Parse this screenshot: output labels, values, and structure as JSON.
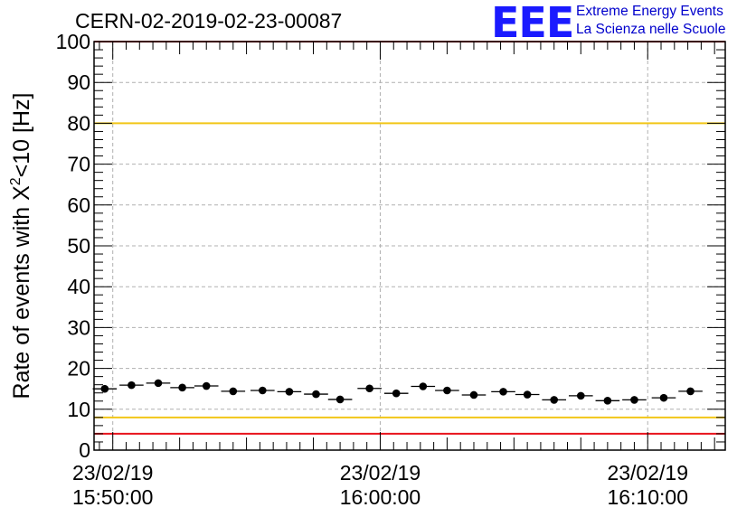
{
  "header": {
    "title": "CERN-02-2019-02-23-00087",
    "logo_text": "EEE",
    "logo_line1": "Extreme Energy Events",
    "logo_line2": "La Scienza nelle Scuole"
  },
  "colors": {
    "logo": "#1a1aff",
    "red_line": "#e8121b",
    "yellow_line": "#f2c618",
    "grid": "#b0b0b0",
    "marker": "#000000"
  },
  "chart_data": {
    "type": "scatter",
    "ylabel_main": "Rate of events with X",
    "ylabel_sup": "2",
    "ylabel_tail": "<10 [Hz]",
    "ylim": [
      0,
      100
    ],
    "y_ticks": [
      "0",
      "10",
      "20",
      "30",
      "40",
      "50",
      "60",
      "70",
      "80",
      "90",
      "100"
    ],
    "x_ticks": [
      {
        "minutes": 0,
        "date": "23/02/19",
        "time": "15:50:00"
      },
      {
        "minutes": 10,
        "date": "23/02/19",
        "time": "16:00:00"
      },
      {
        "minutes": 20,
        "date": "23/02/19",
        "time": "16:10:00"
      }
    ],
    "xlim_minutes": [
      -0.7,
      22.9
    ],
    "bin_width_minutes": 0.9,
    "grid": true,
    "reference_lines": [
      {
        "value": 100,
        "color": "red"
      },
      {
        "value": 80,
        "color": "yellow"
      },
      {
        "value": 8,
        "color": "yellow"
      },
      {
        "value": 4,
        "color": "red"
      }
    ],
    "x_minutes": [
      -0.3,
      0.7,
      1.7,
      2.6,
      3.5,
      4.5,
      5.6,
      6.6,
      7.6,
      8.5,
      9.6,
      10.6,
      11.6,
      12.5,
      13.5,
      14.6,
      15.5,
      16.5,
      17.5,
      18.5,
      19.5,
      20.6,
      21.6
    ],
    "values": [
      15.0,
      15.9,
      16.4,
      15.3,
      15.7,
      14.4,
      14.6,
      14.3,
      13.7,
      12.4,
      15.1,
      13.9,
      15.6,
      14.6,
      13.5,
      14.3,
      13.6,
      12.3,
      13.3,
      12.1,
      12.3,
      12.8,
      14.4
    ]
  }
}
